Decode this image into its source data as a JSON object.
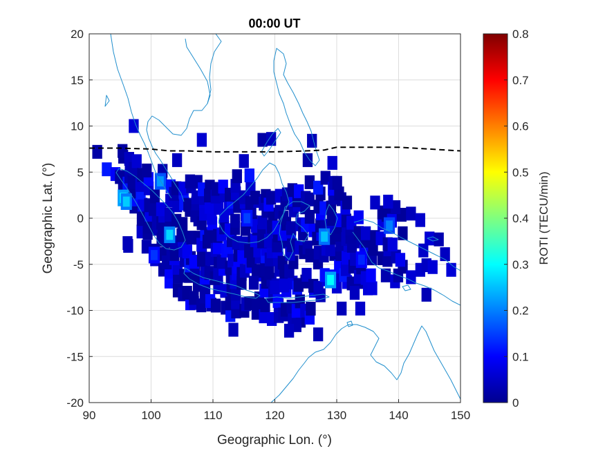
{
  "chart_data": {
    "type": "heatmap",
    "title": "00:00 UT",
    "xlabel": "Geographic Lon. (°)",
    "ylabel": "Geographic Lat. (°)",
    "xlim": [
      90,
      150
    ],
    "ylim": [
      -20,
      20
    ],
    "xticks": [
      "90",
      "100",
      "110",
      "120",
      "130",
      "140",
      "150"
    ],
    "yticks": [
      "20",
      "15",
      "10",
      "5",
      "0",
      "-5",
      "-10",
      "-15",
      "-20"
    ],
    "grid": true,
    "colorbar": {
      "label": "ROTI (TECU/min)",
      "colormap": "jet",
      "range": [
        0,
        0.8
      ],
      "ticks": [
        "0.8",
        "0.7",
        "0.6",
        "0.5",
        "0.4",
        "0.3",
        "0.2",
        "0.1",
        "0"
      ],
      "placement": "right"
    },
    "dashed_line": {
      "color": "#000000",
      "points": [
        [
          90,
          7.6
        ],
        [
          95,
          7.6
        ],
        [
          100,
          7.5
        ],
        [
          103,
          7.3
        ],
        [
          106,
          7.3
        ],
        [
          110,
          7.2
        ],
        [
          115,
          7.2
        ],
        [
          120,
          7.2
        ],
        [
          125,
          7.3
        ],
        [
          128,
          7.4
        ],
        [
          130,
          7.7
        ],
        [
          135,
          7.7
        ],
        [
          140,
          7.7
        ],
        [
          145,
          7.5
        ],
        [
          150,
          7.3
        ]
      ]
    },
    "coastline_color": "#1f8ecd",
    "hotspots": [
      {
        "lon": 95.5,
        "lat": 2.2,
        "roti": 0.3
      },
      {
        "lon": 96,
        "lat": 1.8,
        "roti": 0.26
      },
      {
        "lon": 101.5,
        "lat": 4,
        "roti": 0.22
      },
      {
        "lon": 103,
        "lat": -1.8,
        "roti": 0.27
      },
      {
        "lon": 115.5,
        "lat": 0,
        "roti": 0.15
      },
      {
        "lon": 128,
        "lat": -2,
        "roti": 0.25
      },
      {
        "lon": 129,
        "lat": -6.7,
        "roti": 0.3
      },
      {
        "lon": 138.5,
        "lat": -0.8,
        "roti": 0.2
      },
      {
        "lon": 100.5,
        "lat": -4,
        "roti": 0.14
      },
      {
        "lon": 134,
        "lat": -4.5,
        "roti": 0.13
      }
    ],
    "isolated_cells": [
      {
        "lon": 91.3,
        "lat": 7.2
      },
      {
        "lon": 97.2,
        "lat": 10
      },
      {
        "lon": 108.2,
        "lat": 8.5
      },
      {
        "lon": 115,
        "lat": 6.2
      },
      {
        "lon": 118,
        "lat": 8.5
      },
      {
        "lon": 119.4,
        "lat": 8.6
      },
      {
        "lon": 126,
        "lat": 8.4
      },
      {
        "lon": 125.3,
        "lat": 6.3
      },
      {
        "lon": 129.3,
        "lat": 6
      },
      {
        "lon": 106.3,
        "lat": 4
      },
      {
        "lon": 104.2,
        "lat": 6.3
      },
      {
        "lon": 96.2,
        "lat": -2.7
      },
      {
        "lon": 96.3,
        "lat": -3
      },
      {
        "lon": 139.5,
        "lat": 1.2
      },
      {
        "lon": 142,
        "lat": 0.5
      },
      {
        "lon": 143.5,
        "lat": -0.2
      },
      {
        "lon": 138.3,
        "lat": 1.8
      },
      {
        "lon": 136.2,
        "lat": 1.7
      },
      {
        "lon": 145,
        "lat": -2.2
      },
      {
        "lon": 146.5,
        "lat": -2.3
      },
      {
        "lon": 144,
        "lat": -3.5
      },
      {
        "lon": 143.5,
        "lat": -5.6
      },
      {
        "lon": 144.5,
        "lat": -5.1
      },
      {
        "lon": 145.5,
        "lat": -5.3
      },
      {
        "lon": 147.5,
        "lat": -3.9
      },
      {
        "lon": 142,
        "lat": -6.4
      },
      {
        "lon": 144.5,
        "lat": -8.3
      },
      {
        "lon": 148.5,
        "lat": -5.6
      },
      {
        "lon": 120,
        "lat": -7.5
      },
      {
        "lon": 121.5,
        "lat": -7.3
      },
      {
        "lon": 116.6,
        "lat": -7
      },
      {
        "lon": 123.5,
        "lat": -11.6
      },
      {
        "lon": 122.3,
        "lat": -12.2
      },
      {
        "lon": 113.3,
        "lat": -12.1
      },
      {
        "lon": 130.8,
        "lat": -9.8
      },
      {
        "lon": 132.9,
        "lat": -8.1
      },
      {
        "lon": 133.8,
        "lat": -9.8
      },
      {
        "lon": 127,
        "lat": -12.6
      }
    ]
  }
}
